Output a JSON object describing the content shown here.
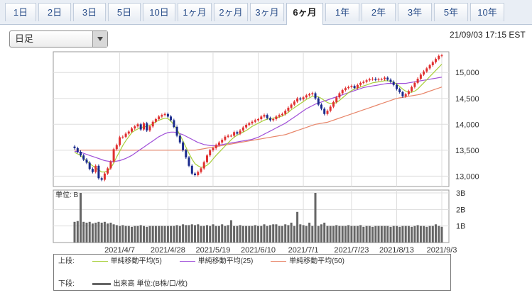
{
  "tabs": [
    {
      "label": "1日",
      "active": false
    },
    {
      "label": "2日",
      "active": false
    },
    {
      "label": "3日",
      "active": false
    },
    {
      "label": "5日",
      "active": false
    },
    {
      "label": "10日",
      "active": false
    },
    {
      "label": "1ヶ月",
      "active": false
    },
    {
      "label": "2ヶ月",
      "active": false
    },
    {
      "label": "3ヶ月",
      "active": false
    },
    {
      "label": "6ヶ月",
      "active": true
    },
    {
      "label": "1年",
      "active": false
    },
    {
      "label": "2年",
      "active": false
    },
    {
      "label": "3年",
      "active": false
    },
    {
      "label": "5年",
      "active": false
    },
    {
      "label": "10年",
      "active": false
    }
  ],
  "period_select": {
    "value": "日足"
  },
  "timestamp": "21/09/03 17:15 EST",
  "legend": {
    "upper_label": "上段:",
    "lower_label": "下段:",
    "ma5": "単純移動平均(5)",
    "ma25": "単純移動平均(25)",
    "ma50": "単純移動平均(50)",
    "volume": "出来高 単位:(B株/口/枚)"
  },
  "colors": {
    "up": "#e03030",
    "down": "#1a2a8c",
    "ma5": "#a8cf3a",
    "ma25": "#a050d8",
    "ma50": "#e8866a",
    "volume": "#666666"
  },
  "chart_data": [
    {
      "type": "candlestick",
      "price_ticks": [
        13000,
        13500,
        14000,
        14500,
        15000
      ],
      "ylim": [
        12800,
        15400
      ],
      "x_tick_labels": [
        "2021/4/7",
        "2021/4/28",
        "2021/5/19",
        "2021/6/10",
        "2021/7/1",
        "2021/7/23",
        "2021/8/13",
        "2021/9/3"
      ],
      "closes": [
        13540,
        13470,
        13400,
        13320,
        13260,
        13140,
        13080,
        13200,
        12960,
        12930,
        13050,
        13150,
        13280,
        13520,
        13600,
        13750,
        13760,
        13820,
        13860,
        13920,
        13960,
        14000,
        13900,
        14020,
        13880,
        13960,
        14050,
        14100,
        14150,
        14180,
        14200,
        14150,
        14080,
        13950,
        13780,
        13650,
        13500,
        13360,
        13200,
        13050,
        13020,
        13080,
        13150,
        13270,
        13400,
        13500,
        13540,
        13600,
        13650,
        13700,
        13760,
        13780,
        13780,
        13850,
        13820,
        13880,
        13940,
        13990,
        14020,
        14050,
        14080,
        14100,
        14150,
        14180,
        14120,
        14080,
        14100,
        14150,
        14180,
        14200,
        14260,
        14320,
        14380,
        14440,
        14500,
        14480,
        14520,
        14560,
        14580,
        14600,
        14500,
        14380,
        14300,
        14200,
        14260,
        14340,
        14430,
        14520,
        14600,
        14660,
        14700,
        14720,
        14740,
        14700,
        14760,
        14800,
        14820,
        14850,
        14870,
        14880,
        14860,
        14870,
        14870,
        14900,
        14860,
        14820,
        14760,
        14680,
        14620,
        14540,
        14580,
        14640,
        14720,
        14800,
        14880,
        14960,
        15020,
        15080,
        15140,
        15200,
        15260,
        15320,
        15330
      ],
      "ma5": [
        13460,
        13430,
        13400,
        13340,
        13300,
        13240,
        13200,
        13160,
        13120,
        13080,
        13080,
        13100,
        13160,
        13250,
        13370,
        13480,
        13590,
        13680,
        13760,
        13840,
        13880,
        13910,
        13940,
        13950,
        13960,
        13980,
        14010,
        14050,
        14080,
        14100,
        14120,
        14110,
        14060,
        13990,
        13900,
        13800,
        13680,
        13560,
        13440,
        13330,
        13240,
        13200,
        13170,
        13180,
        13210,
        13260,
        13330,
        13400,
        13460,
        13520,
        13580,
        13640,
        13700,
        13750,
        13790,
        13820,
        13850,
        13880,
        13920,
        13960,
        13990,
        14020,
        14050,
        14080,
        14100,
        14110,
        14120,
        14130,
        14140,
        14160,
        14190,
        14230,
        14280,
        14320,
        14360,
        14400,
        14440,
        14480,
        14510,
        14540,
        14540,
        14530,
        14500,
        14460,
        14420,
        14400,
        14400,
        14420,
        14460,
        14510,
        14560,
        14610,
        14650,
        14680,
        14700,
        14720,
        14740,
        14760,
        14780,
        14800,
        14810,
        14820,
        14830,
        14840,
        14840,
        14830,
        14810,
        14780,
        14730,
        14680,
        14640,
        14620,
        14620,
        14640,
        14680,
        14740,
        14800,
        14860,
        14920,
        14980,
        15040,
        15100,
        15160
      ],
      "ma25": [
        13480,
        13470,
        13460,
        13440,
        13420,
        13400,
        13380,
        13360,
        13340,
        13320,
        13300,
        13290,
        13280,
        13280,
        13290,
        13300,
        13320,
        13340,
        13370,
        13400,
        13440,
        13480,
        13520,
        13560,
        13600,
        13640,
        13680,
        13720,
        13760,
        13790,
        13820,
        13840,
        13850,
        13850,
        13840,
        13820,
        13800,
        13770,
        13740,
        13710,
        13680,
        13650,
        13630,
        13610,
        13600,
        13590,
        13590,
        13590,
        13600,
        13610,
        13620,
        13630,
        13640,
        13650,
        13660,
        13670,
        13680,
        13690,
        13700,
        13710,
        13730,
        13750,
        13780,
        13810,
        13840,
        13870,
        13900,
        13930,
        13960,
        13990,
        14020,
        14060,
        14100,
        14140,
        14180,
        14220,
        14260,
        14300,
        14330,
        14360,
        14390,
        14410,
        14430,
        14450,
        14470,
        14490,
        14510,
        14530,
        14550,
        14570,
        14590,
        14610,
        14630,
        14650,
        14670,
        14690,
        14710,
        14720,
        14730,
        14740,
        14750,
        14760,
        14770,
        14780,
        14790,
        14790,
        14790,
        14790,
        14790,
        14790,
        14790,
        14800,
        14810,
        14820,
        14830,
        14840,
        14850,
        14860,
        14870,
        14880,
        14890,
        14900,
        14910
      ],
      "ma50": [
        13500,
        13500,
        13500,
        13500,
        13500,
        13500,
        13500,
        13500,
        13500,
        13500,
        13500,
        13500,
        13500,
        13500,
        13500,
        13500,
        13500,
        13500,
        13500,
        13500,
        13500,
        13500,
        13500,
        13500,
        13500,
        13500,
        13500,
        13500,
        13500,
        13500,
        13500,
        13500,
        13500,
        13500,
        13500,
        13500,
        13500,
        13500,
        13500,
        13500,
        13500,
        13510,
        13520,
        13530,
        13540,
        13550,
        13560,
        13570,
        13580,
        13590,
        13600,
        13610,
        13620,
        13630,
        13640,
        13650,
        13660,
        13670,
        13680,
        13690,
        13700,
        13710,
        13720,
        13730,
        13740,
        13750,
        13760,
        13770,
        13780,
        13790,
        13800,
        13820,
        13840,
        13860,
        13880,
        13900,
        13920,
        13940,
        13960,
        13980,
        14000,
        14010,
        14020,
        14030,
        14040,
        14060,
        14080,
        14100,
        14120,
        14140,
        14160,
        14180,
        14200,
        14220,
        14240,
        14260,
        14280,
        14300,
        14320,
        14340,
        14360,
        14380,
        14400,
        14420,
        14440,
        14460,
        14480,
        14500,
        14510,
        14520,
        14530,
        14540,
        14550,
        14560,
        14570,
        14580,
        14600,
        14620,
        14640,
        14660,
        14680,
        14700,
        14720
      ]
    },
    {
      "type": "bar",
      "title": "単位: B",
      "volume_ticks": [
        "1B",
        "2B",
        "3B"
      ],
      "ylim": [
        0,
        3
      ],
      "values": [
        1.25,
        1.3,
        3.0,
        1.25,
        1.2,
        1.25,
        1.15,
        1.2,
        1.25,
        1.2,
        1.25,
        1.15,
        1.2,
        1.1,
        1.05,
        1.0,
        1.05,
        1.0,
        1.0,
        0.95,
        1.0,
        1.0,
        1.05,
        1.0,
        0.95,
        1.0,
        1.0,
        1.0,
        1.0,
        1.0,
        1.0,
        1.0,
        1.0,
        1.0,
        1.05,
        1.0,
        1.1,
        1.05,
        1.05,
        1.1,
        1.05,
        1.1,
        1.0,
        1.0,
        1.05,
        1.0,
        1.1,
        1.0,
        1.0,
        1.1,
        1.0,
        1.05,
        1.35,
        1.0,
        1.0,
        1.05,
        1.0,
        1.0,
        1.0,
        1.0,
        1.05,
        1.0,
        1.0,
        1.1,
        1.0,
        1.05,
        1.1,
        1.1,
        1.0,
        1.0,
        1.1,
        1.05,
        1.2,
        1.0,
        1.85,
        1.1,
        1.05,
        1.0,
        1.2,
        1.0,
        3.0,
        1.0,
        1.1,
        1.2,
        1.0,
        1.0,
        1.0,
        1.05,
        1.0,
        1.0,
        1.0,
        1.05,
        1.0,
        1.0,
        1.0,
        1.05,
        0.95,
        1.0,
        1.0,
        0.95,
        1.0,
        1.0,
        1.0,
        1.0,
        1.0,
        0.95,
        1.0,
        1.0,
        0.95,
        1.0,
        1.0,
        1.0,
        0.95,
        1.0,
        1.05,
        1.0,
        1.0,
        0.95,
        1.0,
        1.0,
        1.1,
        1.0,
        0.95
      ]
    }
  ]
}
